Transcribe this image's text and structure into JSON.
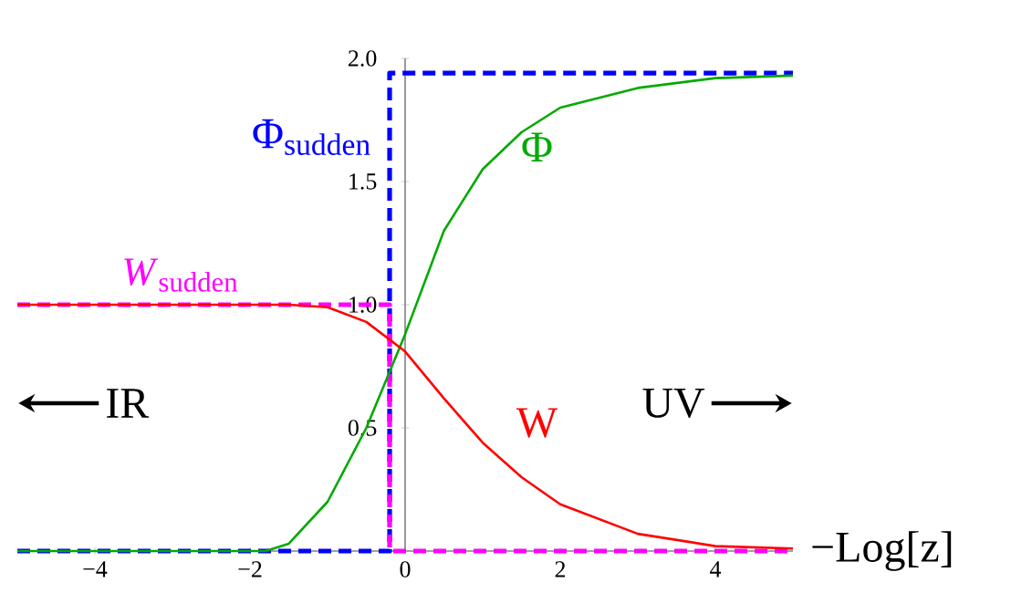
{
  "chart_data": {
    "type": "line",
    "xlabel": "−Log[z]",
    "xlim": [
      -5,
      5
    ],
    "ylim": [
      0,
      2.0
    ],
    "xticks": [
      {
        "value": -4,
        "label": "−4"
      },
      {
        "value": -2,
        "label": "−2"
      },
      0,
      2,
      4
    ],
    "yticks": [
      0.5,
      {
        "value": 1.0,
        "label": "1.0"
      },
      1.5,
      {
        "value": 2.0,
        "label": "2.0"
      }
    ],
    "grid": false,
    "legend": false,
    "marker": "none",
    "series": [
      {
        "name": "Φ$_{sudden}$",
        "color": "#0000ff",
        "line_style": "dashed",
        "x": [
          -5,
          -0.2,
          -0.2,
          5
        ],
        "values": [
          0,
          0,
          1.94,
          1.94
        ]
      },
      {
        "name": "*W*$_{sudden}$",
        "color": "#ff00ff",
        "line_style": "dashed",
        "x": [
          -5,
          -0.2,
          -0.2,
          5
        ],
        "values": [
          1,
          1,
          0,
          0
        ]
      },
      {
        "name": "Φ",
        "color": "#00aa00",
        "line_style": "solid",
        "x": [
          -5,
          -1.8,
          -1.5,
          -1,
          -0.5,
          0,
          0.5,
          1,
          1.5,
          2,
          3,
          4,
          5
        ],
        "values": [
          0,
          0,
          0.03,
          0.2,
          0.5,
          0.88,
          1.3,
          1.55,
          1.7,
          1.8,
          1.88,
          1.92,
          1.93
        ]
      },
      {
        "name": "W",
        "color": "#ff0000",
        "line_style": "solid",
        "x": [
          -5,
          -1.5,
          -1,
          -0.5,
          0,
          0.5,
          1,
          1.5,
          2,
          3,
          4,
          5
        ],
        "values": [
          1,
          1,
          0.99,
          0.93,
          0.81,
          0.62,
          0.44,
          0.3,
          0.19,
          0.07,
          0.02,
          0.01
        ]
      }
    ],
    "annotations": [
      "IR",
      "UV"
    ]
  }
}
